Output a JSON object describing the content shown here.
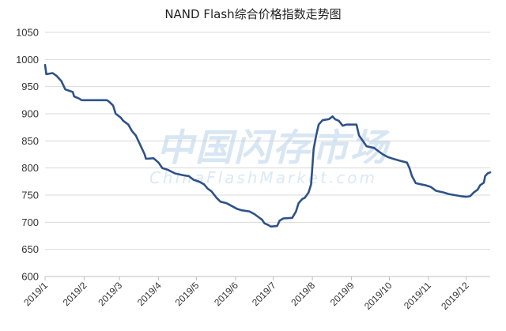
{
  "chart_data": {
    "type": "line",
    "title": "NAND Flash综合价格指数走势图",
    "xlabel": "",
    "ylabel": "",
    "ylim": [
      600,
      1050
    ],
    "yticks": [
      600,
      650,
      700,
      750,
      800,
      850,
      900,
      950,
      1000,
      1050
    ],
    "xlim": [
      "2019-01-01",
      "2019-12-20"
    ],
    "xticks": [
      {
        "date": "2019-01-01",
        "label": "2019/1"
      },
      {
        "date": "2019-02-01",
        "label": "2019/2"
      },
      {
        "date": "2019-03-01",
        "label": "2019/3"
      },
      {
        "date": "2019-04-01",
        "label": "2019/4"
      },
      {
        "date": "2019-05-01",
        "label": "2019/5"
      },
      {
        "date": "2019-06-01",
        "label": "2019/6"
      },
      {
        "date": "2019-07-01",
        "label": "2019/7"
      },
      {
        "date": "2019-08-01",
        "label": "2019/8"
      },
      {
        "date": "2019-09-01",
        "label": "2019/9"
      },
      {
        "date": "2019-10-01",
        "label": "2019/10"
      },
      {
        "date": "2019-11-01",
        "label": "2019/11"
      },
      {
        "date": "2019-12-01",
        "label": "2019/12"
      }
    ],
    "grid": {
      "horizontal": true,
      "vertical": false
    },
    "legend": "none",
    "series": [
      {
        "color": "#2e5288",
        "points": [
          [
            "2019-01-01",
            990
          ],
          [
            "2019-01-02",
            973
          ],
          [
            "2019-01-07",
            975
          ],
          [
            "2019-01-10",
            970
          ],
          [
            "2019-01-14",
            960
          ],
          [
            "2019-01-17",
            945
          ],
          [
            "2019-01-23",
            940
          ],
          [
            "2019-01-24",
            932
          ],
          [
            "2019-01-28",
            928
          ],
          [
            "2019-01-30",
            925
          ],
          [
            "2019-02-05",
            925
          ],
          [
            "2019-02-19",
            925
          ],
          [
            "2019-02-21",
            922
          ],
          [
            "2019-02-24",
            915
          ],
          [
            "2019-02-26",
            900
          ],
          [
            "2019-03-02",
            893
          ],
          [
            "2019-03-04",
            887
          ],
          [
            "2019-03-08",
            880
          ],
          [
            "2019-03-11",
            868
          ],
          [
            "2019-03-14",
            860
          ],
          [
            "2019-03-18",
            840
          ],
          [
            "2019-03-21",
            825
          ],
          [
            "2019-03-22",
            817
          ],
          [
            "2019-03-28",
            818
          ],
          [
            "2019-04-01",
            810
          ],
          [
            "2019-04-04",
            800
          ],
          [
            "2019-04-08",
            797
          ],
          [
            "2019-04-14",
            790
          ],
          [
            "2019-04-20",
            787
          ],
          [
            "2019-04-25",
            785
          ],
          [
            "2019-04-29",
            778
          ],
          [
            "2019-05-03",
            775
          ],
          [
            "2019-05-07",
            770
          ],
          [
            "2019-05-10",
            762
          ],
          [
            "2019-05-13",
            757
          ],
          [
            "2019-05-17",
            745
          ],
          [
            "2019-05-20",
            738
          ],
          [
            "2019-05-25",
            735
          ],
          [
            "2019-05-29",
            730
          ],
          [
            "2019-06-02",
            725
          ],
          [
            "2019-06-06",
            722
          ],
          [
            "2019-06-12",
            720
          ],
          [
            "2019-06-16",
            715
          ],
          [
            "2019-06-19",
            710
          ],
          [
            "2019-06-22",
            705
          ],
          [
            "2019-06-24",
            698
          ],
          [
            "2019-06-27",
            695
          ],
          [
            "2019-06-29",
            692
          ],
          [
            "2019-07-04",
            693
          ],
          [
            "2019-07-06",
            703
          ],
          [
            "2019-07-09",
            707
          ],
          [
            "2019-07-16",
            708
          ],
          [
            "2019-07-19",
            720
          ],
          [
            "2019-07-21",
            735
          ],
          [
            "2019-07-24",
            743
          ],
          [
            "2019-07-26",
            745
          ],
          [
            "2019-07-29",
            755
          ],
          [
            "2019-07-31",
            770
          ],
          [
            "2019-08-02",
            835
          ],
          [
            "2019-08-04",
            860
          ],
          [
            "2019-08-06",
            880
          ],
          [
            "2019-08-09",
            888
          ],
          [
            "2019-08-14",
            890
          ],
          [
            "2019-08-17",
            895
          ],
          [
            "2019-08-19",
            890
          ],
          [
            "2019-08-22",
            887
          ],
          [
            "2019-08-25",
            878
          ],
          [
            "2019-08-28",
            880
          ],
          [
            "2019-09-05",
            880
          ],
          [
            "2019-09-07",
            860
          ],
          [
            "2019-09-10",
            850
          ],
          [
            "2019-09-13",
            840
          ],
          [
            "2019-09-19",
            837
          ],
          [
            "2019-09-23",
            830
          ],
          [
            "2019-09-26",
            825
          ],
          [
            "2019-09-30",
            820
          ],
          [
            "2019-10-04",
            817
          ],
          [
            "2019-10-10",
            813
          ],
          [
            "2019-10-15",
            810
          ],
          [
            "2019-10-17",
            800
          ],
          [
            "2019-10-19",
            785
          ],
          [
            "2019-10-22",
            772
          ],
          [
            "2019-10-26",
            770
          ],
          [
            "2019-10-30",
            768
          ],
          [
            "2019-11-03",
            765
          ],
          [
            "2019-11-07",
            758
          ],
          [
            "2019-11-13",
            755
          ],
          [
            "2019-11-17",
            752
          ],
          [
            "2019-11-22",
            750
          ],
          [
            "2019-11-27",
            748
          ],
          [
            "2019-12-01",
            747
          ],
          [
            "2019-12-04",
            748
          ],
          [
            "2019-12-07",
            755
          ],
          [
            "2019-12-10",
            760
          ],
          [
            "2019-12-12",
            768
          ],
          [
            "2019-12-15",
            773
          ],
          [
            "2019-12-16",
            785
          ],
          [
            "2019-12-18",
            790
          ],
          [
            "2019-12-20",
            792
          ]
        ]
      }
    ],
    "watermark": {
      "cn": "中国闪存市场",
      "en": "ChinaFlashMarket.com"
    }
  }
}
